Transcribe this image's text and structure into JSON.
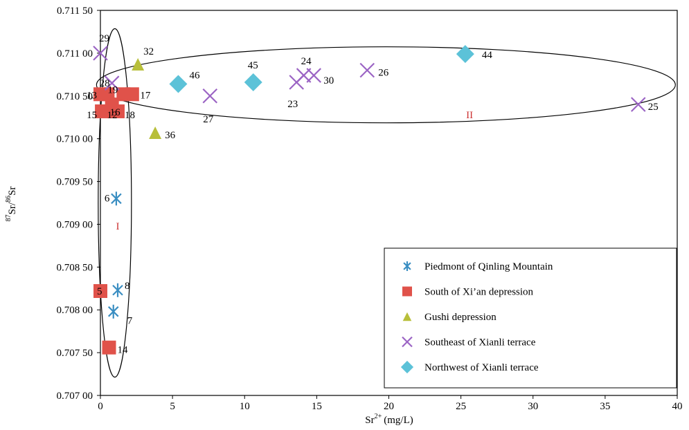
{
  "chart_data": {
    "type": "scatter",
    "title": "",
    "xlabel": "Sr",
    "xlabel_sup": "2+",
    "xlabel_unit": "(mg/L)",
    "ylabel_sup": "87",
    "ylabel_mid": "Sr/",
    "ylabel_sup2": "86",
    "ylabel_end": "Sr",
    "xlim": [
      0,
      40
    ],
    "ylim": [
      0.707,
      0.7115
    ],
    "x_ticks": [
      0,
      5,
      10,
      15,
      20,
      25,
      30,
      35,
      40
    ],
    "x_tick_labels": [
      "0",
      "5",
      "10",
      "15",
      "20",
      "25",
      "30",
      "35",
      "40"
    ],
    "y_ticks": [
      0.707,
      0.7075,
      0.708,
      0.7085,
      0.709,
      0.7095,
      0.71,
      0.7105,
      0.711,
      0.7115
    ],
    "y_tick_labels": [
      "0.707 00",
      "0.707 50",
      "0.708 00",
      "0.708 50",
      "0.709 00",
      "0.709 50",
      "0.710 00",
      "0.710 50",
      "0.711 00",
      "0.711 50"
    ],
    "grid": false,
    "legend_position": "bottom-right",
    "series": [
      {
        "name": "Piedmont of Qinling Mountain",
        "marker": "asterisk",
        "color": "#3a8ec2",
        "points": [
          {
            "x": 1.1,
            "y": 0.7093,
            "label": "6"
          },
          {
            "x": 1.2,
            "y": 0.70823,
            "label": "8"
          },
          {
            "x": 0.9,
            "y": 0.70798,
            "label": "7"
          }
        ]
      },
      {
        "name": "South of Xi’an depression",
        "marker": "square",
        "color": "#e0524a",
        "points": [
          {
            "x": 0.0,
            "y": 0.71052,
            "label": "13"
          },
          {
            "x": 0.5,
            "y": 0.71052,
            "label": "19"
          },
          {
            "x": 1.6,
            "y": 0.71052,
            "label": "17"
          },
          {
            "x": 2.2,
            "y": 0.71052,
            "label": ""
          },
          {
            "x": 0.8,
            "y": 0.7104,
            "label": "16"
          },
          {
            "x": 1.2,
            "y": 0.71032,
            "label": "18"
          },
          {
            "x": 0.1,
            "y": 0.71032,
            "label": "15"
          },
          {
            "x": 0.6,
            "y": 0.71032,
            "label": "12"
          },
          {
            "x": 0.0,
            "y": 0.70822,
            "label": "5"
          },
          {
            "x": 0.6,
            "y": 0.70756,
            "label": "14"
          }
        ]
      },
      {
        "name": "Gushi depression",
        "marker": "triangle",
        "color": "#b8bf3a",
        "points": [
          {
            "x": 2.6,
            "y": 0.71087,
            "label": "32"
          },
          {
            "x": 3.8,
            "y": 0.71007,
            "label": "36"
          }
        ]
      },
      {
        "name": "Southeast of Xianli terrace",
        "marker": "cross",
        "color": "#9b64c4",
        "points": [
          {
            "x": 0.0,
            "y": 0.711,
            "label": "29"
          },
          {
            "x": 0.8,
            "y": 0.71065,
            "label": "28"
          },
          {
            "x": 7.6,
            "y": 0.7105,
            "label": "27"
          },
          {
            "x": 13.6,
            "y": 0.71066,
            "label": "23"
          },
          {
            "x": 14.1,
            "y": 0.71074,
            "label": "24"
          },
          {
            "x": 14.8,
            "y": 0.71074,
            "label": "30"
          },
          {
            "x": 18.5,
            "y": 0.7108,
            "label": "26"
          },
          {
            "x": 37.3,
            "y": 0.7104,
            "label": "25"
          }
        ]
      },
      {
        "name": "Northwest of Xianli terrace",
        "marker": "diamond",
        "color": "#5cc2d8",
        "points": [
          {
            "x": 5.4,
            "y": 0.71064,
            "label": "46"
          },
          {
            "x": 10.6,
            "y": 0.71066,
            "label": "45"
          },
          {
            "x": 25.3,
            "y": 0.71099,
            "label": "44"
          }
        ]
      }
    ],
    "annotations": [
      {
        "text": "I",
        "color": "#cc3333"
      },
      {
        "text": "II",
        "color": "#cc3333"
      }
    ]
  }
}
